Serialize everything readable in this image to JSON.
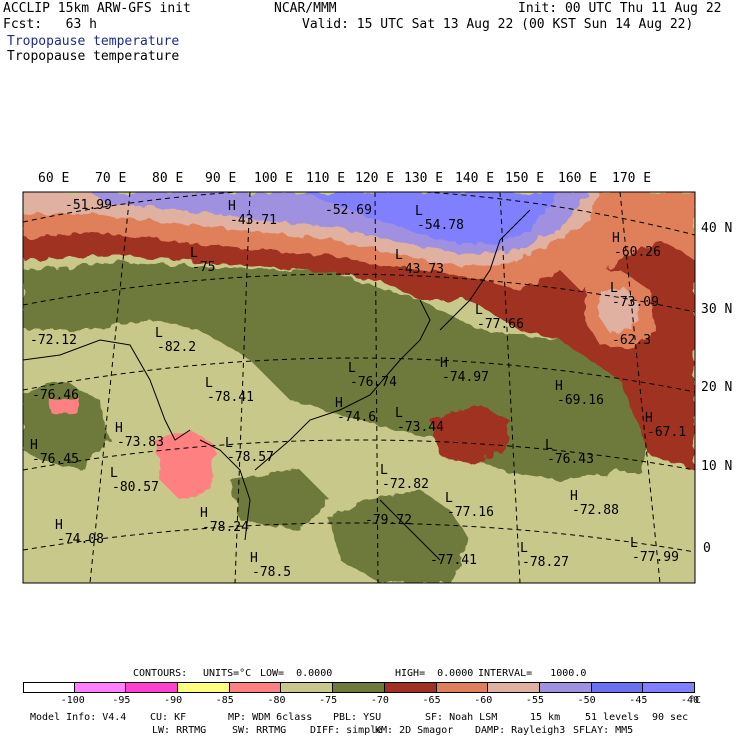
{
  "header": {
    "line1_left": "ACCLIP 15km ARW-GFS init",
    "line1_center": "NCAR/MMM",
    "line1_right": "Init: 00 UTC Thu 11 Aug 22",
    "line2_left": "Fcst:   63 h",
    "line2_right": "Valid: 15 UTC Sat 13 Aug 22 (00 KST Sun 14 Aug 22)",
    "field_title_blue": "Tropopause temperature",
    "field_title_black": "Tropopause temperature"
  },
  "map": {
    "longitude_labels": [
      "60 E",
      "70 E",
      "80 E",
      "90 E",
      "100 E",
      "110 E",
      "120 E",
      "130 E",
      "140 E",
      "150 E",
      "160 E",
      "170 E"
    ],
    "latitude_labels": [
      "40 N",
      "30 N",
      "20 N",
      "10 N",
      "0"
    ],
    "extrema_labels": [
      {
        "type": "",
        "value": "-51.99"
      },
      {
        "type": "H",
        "value": "-43.71"
      },
      {
        "type": "",
        "value": "-52.69"
      },
      {
        "type": "L",
        "value": "-54.78"
      },
      {
        "type": "L",
        "value": "-43.73"
      },
      {
        "type": "H",
        "value": "-60.26"
      },
      {
        "type": "L",
        "value": "-75"
      },
      {
        "type": "L",
        "value": "-73.09"
      },
      {
        "type": "L",
        "value": "-77.66"
      },
      {
        "type": "",
        "value": "-72.12"
      },
      {
        "type": "L",
        "value": "-82.2"
      },
      {
        "type": "",
        "value": "-62.3"
      },
      {
        "type": "L",
        "value": "-76.74"
      },
      {
        "type": "H",
        "value": "-74.97"
      },
      {
        "type": "",
        "value": "-76.46"
      },
      {
        "type": "L",
        "value": "-78.41"
      },
      {
        "type": "H",
        "value": "-69.16"
      },
      {
        "type": "H",
        "value": "-74.6"
      },
      {
        "type": "L",
        "value": "-73.44"
      },
      {
        "type": "H",
        "value": "-67.1"
      },
      {
        "type": "H",
        "value": "-73.83"
      },
      {
        "type": "H",
        "value": "-76.45"
      },
      {
        "type": "L",
        "value": "-78.57"
      },
      {
        "type": "L",
        "value": "-76.43"
      },
      {
        "type": "L",
        "value": "-80.57"
      },
      {
        "type": "L",
        "value": "-72.82"
      },
      {
        "type": "H",
        "value": "-72.88"
      },
      {
        "type": "H",
        "value": "-78.24"
      },
      {
        "type": "L",
        "value": "-77.16"
      },
      {
        "type": "H",
        "value": "-74.08"
      },
      {
        "type": "",
        "value": "-79.72"
      },
      {
        "type": "L",
        "value": "-78.27"
      },
      {
        "type": "L",
        "value": "-77.99"
      },
      {
        "type": "H",
        "value": "-78.5"
      },
      {
        "type": "",
        "value": "-77.41"
      }
    ]
  },
  "contour_info": {
    "contours": "CONTOURS:",
    "units": "UNITS=°C",
    "low": "LOW=  0.0000",
    "high": "HIGH=  0.0000",
    "interval": "INTERVAL=   1000.0"
  },
  "colorbar": {
    "tick_labels": [
      "-100",
      "-95",
      "-90",
      "-85",
      "-80",
      "-75",
      "-70",
      "-65",
      "-60",
      "-55",
      "-50",
      "-45",
      "-40"
    ],
    "unit": "°C",
    "colors": [
      "#ffffff",
      "#ff80ff",
      "#ff40d0",
      "#ffff80",
      "#ff8080",
      "#c8c88a",
      "#6e7a3a",
      "#a03020",
      "#e0805a",
      "#e0b0a0",
      "#a090e0",
      "#6a70f0",
      "#8080ff"
    ]
  },
  "footer": {
    "line1": [
      "Model Info: V4.4",
      "CU: KF",
      "MP: WDM 6class",
      "PBL: YSU",
      "SF: Noah LSM",
      "15 km",
      "51 levels",
      "90 sec"
    ],
    "line2": [
      "LW: RRTMG",
      "SW: RRTMG",
      "DIFF: simple",
      "KM: 2D Smagor",
      "DAMP: Rayleigh3",
      "SFLAY: MM5"
    ]
  }
}
